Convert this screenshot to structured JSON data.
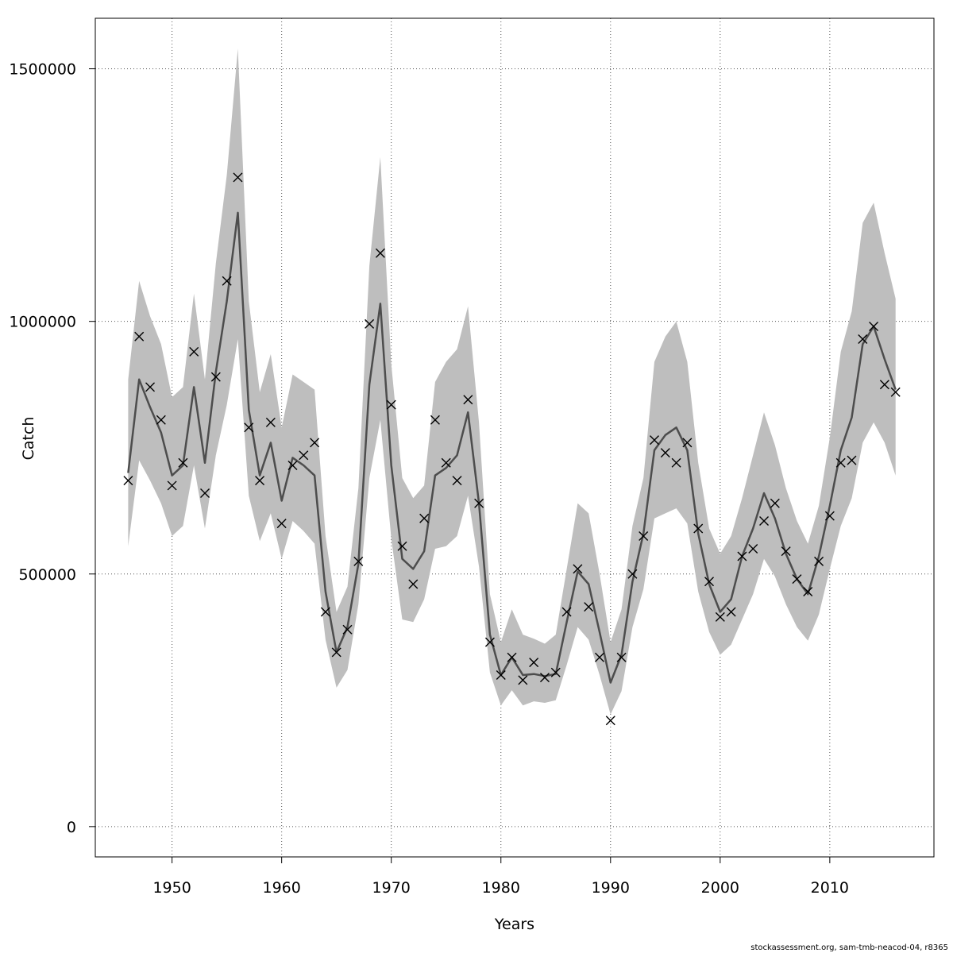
{
  "chart_data": {
    "type": "line",
    "title": "",
    "xlabel": "Years",
    "ylabel": "Catch",
    "xlim": [
      1943,
      2019.5
    ],
    "ylim": [
      -60000,
      1600000
    ],
    "xticks": [
      1950,
      1960,
      1970,
      1980,
      1990,
      2000,
      2010
    ],
    "yticks": [
      0,
      500000,
      1000000,
      1500000
    ],
    "xtick_labels": [
      "1950",
      "1960",
      "1970",
      "1980",
      "1990",
      "2000",
      "2010"
    ],
    "ytick_labels": [
      "0",
      "500000",
      "1000000",
      "1500000"
    ],
    "grid": true,
    "colors": {
      "band": "#bebebe",
      "line": "#4d4d4d",
      "marker": "#000000",
      "grid": "#555555"
    },
    "x": [
      1946,
      1947,
      1948,
      1949,
      1950,
      1951,
      1952,
      1953,
      1954,
      1955,
      1956,
      1957,
      1958,
      1959,
      1960,
      1961,
      1962,
      1963,
      1964,
      1965,
      1966,
      1967,
      1968,
      1969,
      1970,
      1971,
      1972,
      1973,
      1974,
      1975,
      1976,
      1977,
      1978,
      1979,
      1980,
      1981,
      1982,
      1983,
      1984,
      1985,
      1986,
      1987,
      1988,
      1989,
      1990,
      1991,
      1992,
      1993,
      1994,
      1995,
      1996,
      1997,
      1998,
      1999,
      2000,
      2001,
      2002,
      2003,
      2004,
      2005,
      2006,
      2007,
      2008,
      2009,
      2010,
      2011,
      2012,
      2013,
      2014,
      2015,
      2016
    ],
    "series": [
      {
        "name": "Estimated catch",
        "values": [
          700000,
          885000,
          830000,
          780000,
          695000,
          715000,
          870000,
          720000,
          900000,
          1040000,
          1215000,
          825000,
          695000,
          760000,
          645000,
          730000,
          715000,
          695000,
          465000,
          345000,
          395000,
          520000,
          875000,
          1035000,
          715000,
          530000,
          510000,
          545000,
          695000,
          710000,
          735000,
          820000,
          640000,
          380000,
          300000,
          335000,
          300000,
          302000,
          298000,
          302000,
          405000,
          505000,
          480000,
          385000,
          285000,
          340000,
          485000,
          580000,
          745000,
          775000,
          790000,
          745000,
          580000,
          480000,
          425000,
          450000,
          535000,
          590000,
          660000,
          610000,
          540000,
          490000,
          460000,
          535000,
          635000,
          745000,
          810000,
          955000,
          990000,
          925000,
          865000
        ]
      },
      {
        "name": "Upper bound",
        "values": [
          885000,
          1080000,
          1010000,
          955000,
          850000,
          870000,
          1055000,
          885000,
          1115000,
          1290000,
          1540000,
          1040000,
          860000,
          935000,
          790000,
          895000,
          880000,
          865000,
          575000,
          425000,
          475000,
          670000,
          1110000,
          1325000,
          915000,
          690000,
          650000,
          675000,
          880000,
          920000,
          945000,
          1030000,
          800000,
          460000,
          365000,
          430000,
          380000,
          372000,
          362000,
          380000,
          510000,
          640000,
          620000,
          500000,
          365000,
          430000,
          595000,
          690000,
          920000,
          970000,
          1000000,
          920000,
          720000,
          590000,
          540000,
          575000,
          650000,
          735000,
          820000,
          755000,
          670000,
          605000,
          560000,
          635000,
          770000,
          940000,
          1020000,
          1195000,
          1235000,
          1135000,
          1045000
        ]
      },
      {
        "name": "Lower bound",
        "values": [
          555000,
          725000,
          685000,
          640000,
          575000,
          595000,
          715000,
          590000,
          735000,
          835000,
          965000,
          655000,
          565000,
          620000,
          530000,
          605000,
          585000,
          560000,
          370000,
          275000,
          310000,
          440000,
          690000,
          805000,
          570000,
          410000,
          405000,
          450000,
          550000,
          555000,
          575000,
          655000,
          515000,
          305000,
          240000,
          270000,
          240000,
          248000,
          245000,
          250000,
          320000,
          395000,
          370000,
          300000,
          222000,
          268000,
          395000,
          470000,
          610000,
          620000,
          630000,
          600000,
          465000,
          385000,
          340000,
          360000,
          410000,
          460000,
          530000,
          495000,
          440000,
          395000,
          368000,
          420000,
          510000,
          595000,
          650000,
          760000,
          800000,
          760000,
          695000
        ]
      },
      {
        "name": "Observed catch",
        "values": [
          685000,
          970000,
          870000,
          805000,
          675000,
          720000,
          940000,
          660000,
          890000,
          1080000,
          1285000,
          790000,
          685000,
          800000,
          600000,
          715000,
          735000,
          760000,
          425000,
          345000,
          390000,
          525000,
          995000,
          1135000,
          835000,
          555000,
          480000,
          610000,
          805000,
          720000,
          685000,
          845000,
          640000,
          365000,
          300000,
          335000,
          290000,
          325000,
          295000,
          305000,
          425000,
          510000,
          435000,
          335000,
          210000,
          335000,
          500000,
          575000,
          765000,
          740000,
          720000,
          760000,
          590000,
          485000,
          415000,
          425000,
          535000,
          550000,
          605000,
          640000,
          545000,
          490000,
          465000,
          525000,
          615000,
          720000,
          725000,
          965000,
          990000,
          875000,
          860000
        ]
      }
    ]
  },
  "footer": {
    "text": "stockassessment.org, sam-tmb-neacod-04, r8365"
  }
}
